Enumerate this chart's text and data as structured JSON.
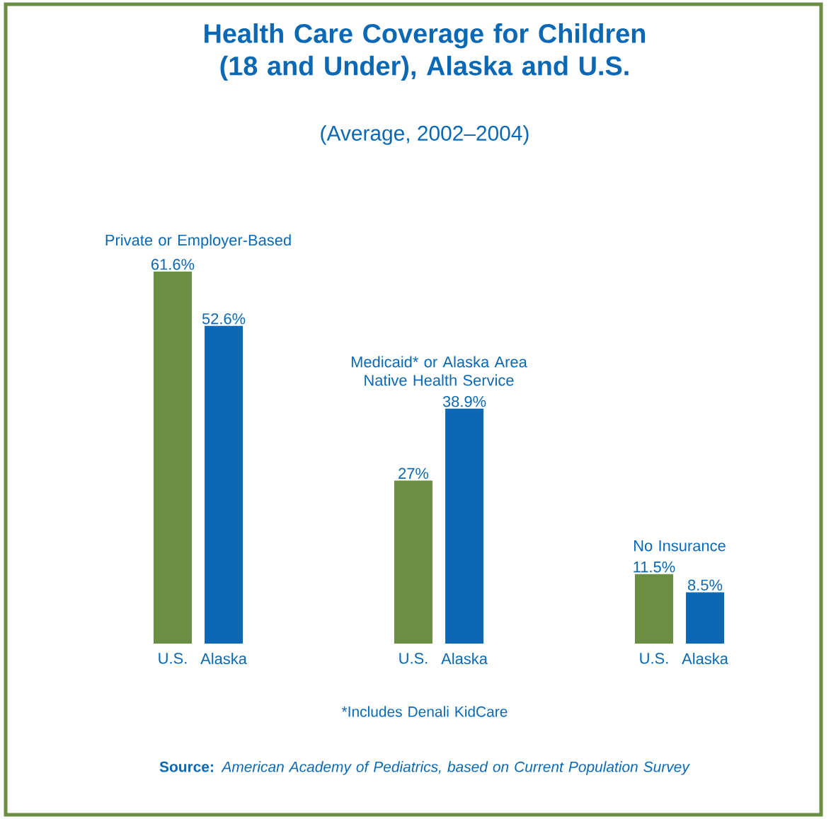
{
  "chart_data": {
    "type": "bar",
    "title": "Health Care Coverage for Children (18 and Under), Alaska and U.S.",
    "subtitle": "(Average, 2002–2004)",
    "categories": [
      "Private or Employer-Based",
      "Medicaid* or Alaska Area Native Health Service",
      "No Insurance"
    ],
    "series": [
      {
        "name": "U.S.",
        "color": "#6b8e45",
        "values": [
          61.6,
          27,
          11.5
        ],
        "value_labels": [
          "61.6%",
          "27%",
          "11.5%"
        ]
      },
      {
        "name": "Alaska",
        "color": "#0b68b4",
        "values": [
          52.6,
          38.9,
          8.5
        ],
        "value_labels": [
          "52.6%",
          "38.9%",
          "8.5%"
        ]
      }
    ],
    "annotations": [
      "*Includes Denali KidCare",
      "**Source:** *American Academy of Pediatrics, based on Current Population Survey*"
    ]
  }
}
